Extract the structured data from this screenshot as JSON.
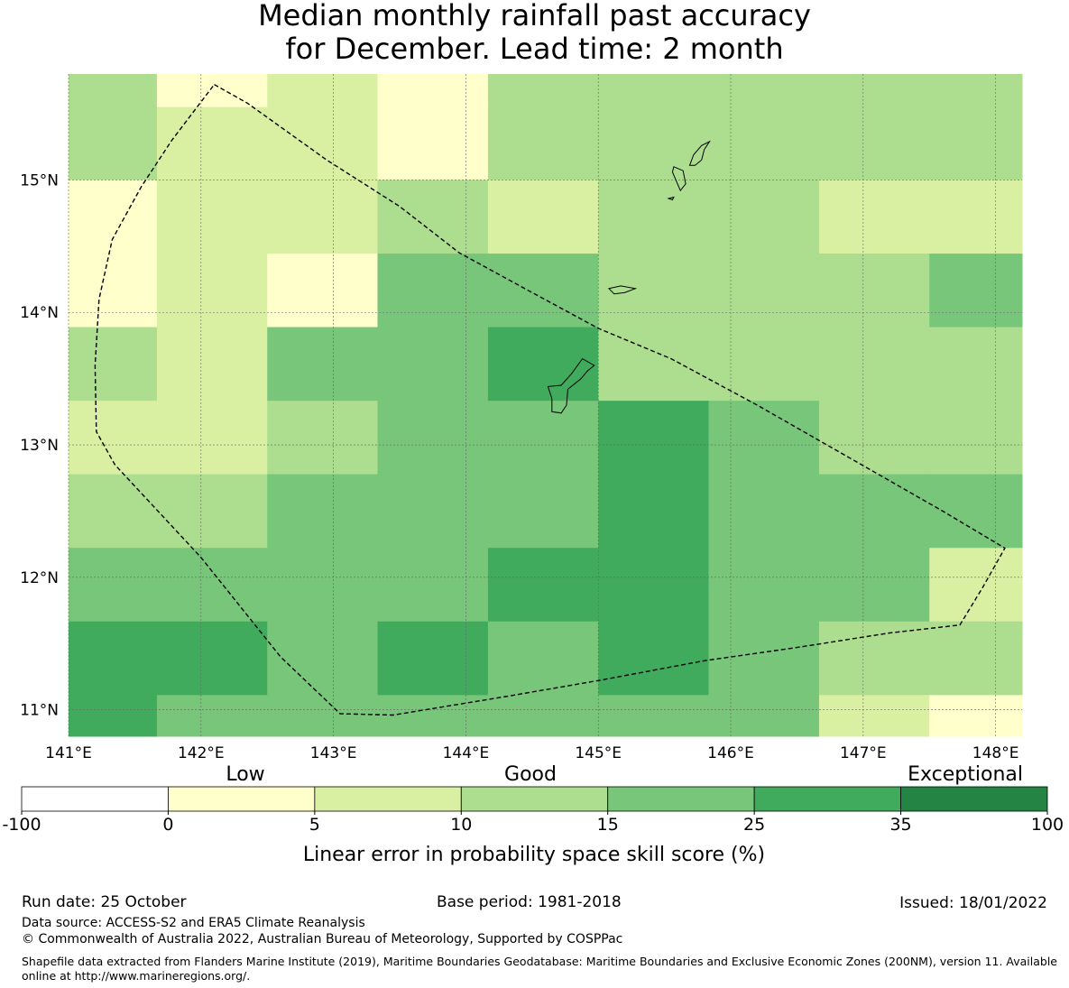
{
  "title": {
    "line1": "Median monthly rainfall past accuracy",
    "line2": "for December. Lead time: 2 month"
  },
  "map": {
    "lon_range": [
      141.0,
      148.2
    ],
    "lat_range": [
      10.8,
      15.8
    ],
    "lon_ticks": [
      {
        "value": 141,
        "label": "141°E"
      },
      {
        "value": 142,
        "label": "142°E"
      },
      {
        "value": 143,
        "label": "143°E"
      },
      {
        "value": 144,
        "label": "144°E"
      },
      {
        "value": 145,
        "label": "145°E"
      },
      {
        "value": 146,
        "label": "146°E"
      },
      {
        "value": 147,
        "label": "147°E"
      },
      {
        "value": 148,
        "label": "148°E"
      }
    ],
    "lat_ticks": [
      {
        "value": 15,
        "label": "15°N"
      },
      {
        "value": 14,
        "label": "14°N"
      },
      {
        "value": 13,
        "label": "13°N"
      },
      {
        "value": 12,
        "label": "12°N"
      },
      {
        "value": 11,
        "label": "11°N"
      }
    ],
    "grid_lon_edges": [
      141.0,
      141.667,
      142.5,
      143.333,
      144.167,
      145.0,
      145.833,
      146.667,
      147.5,
      148.2
    ],
    "grid_lat_edges": [
      15.8,
      15.55,
      15.0,
      14.444,
      13.889,
      13.333,
      12.778,
      12.222,
      11.667,
      11.111,
      10.8
    ],
    "cell_classes": [
      [
        2,
        0,
        1,
        0,
        2,
        2,
        2,
        2,
        2
      ],
      [
        2,
        1,
        1,
        0,
        2,
        2,
        2,
        2,
        2
      ],
      [
        0,
        1,
        1,
        2,
        1,
        2,
        2,
        1,
        1
      ],
      [
        0,
        1,
        0,
        3,
        3,
        2,
        2,
        2,
        3
      ],
      [
        2,
        1,
        3,
        3,
        4,
        2,
        2,
        2,
        2
      ],
      [
        1,
        1,
        2,
        3,
        3,
        4,
        3,
        2,
        2
      ],
      [
        2,
        2,
        3,
        3,
        3,
        4,
        3,
        3,
        3
      ],
      [
        3,
        3,
        3,
        3,
        4,
        4,
        3,
        3,
        1
      ],
      [
        4,
        4,
        3,
        4,
        3,
        4,
        3,
        2,
        2
      ],
      [
        4,
        3,
        3,
        3,
        3,
        3,
        3,
        1,
        0
      ]
    ],
    "eez_boundary": [
      [
        142.1,
        15.72
      ],
      [
        142.35,
        15.58
      ],
      [
        142.95,
        15.15
      ],
      [
        143.5,
        14.8
      ],
      [
        143.95,
        14.45
      ],
      [
        144.5,
        14.15
      ],
      [
        145.0,
        13.88
      ],
      [
        145.55,
        13.65
      ],
      [
        146.2,
        13.3
      ],
      [
        146.9,
        12.9
      ],
      [
        147.6,
        12.5
      ],
      [
        148.07,
        12.22
      ],
      [
        147.9,
        11.92
      ],
      [
        147.73,
        11.64
      ],
      [
        147.2,
        11.58
      ],
      [
        146.5,
        11.47
      ],
      [
        145.8,
        11.37
      ],
      [
        145.0,
        11.22
      ],
      [
        144.3,
        11.1
      ],
      [
        143.45,
        10.96
      ],
      [
        143.05,
        10.97
      ],
      [
        142.6,
        11.4
      ],
      [
        142.0,
        12.15
      ],
      [
        141.35,
        12.85
      ],
      [
        141.21,
        13.1
      ],
      [
        141.2,
        13.6
      ],
      [
        141.23,
        14.1
      ],
      [
        141.33,
        14.55
      ],
      [
        141.55,
        14.95
      ],
      [
        141.78,
        15.3
      ],
      [
        142.1,
        15.72
      ]
    ],
    "islands": [
      {
        "name": "Guam",
        "outline": [
          [
            144.97,
            13.6
          ],
          [
            144.88,
            13.65
          ],
          [
            144.8,
            13.54
          ],
          [
            144.72,
            13.45
          ],
          [
            144.62,
            13.44
          ],
          [
            144.65,
            13.35
          ],
          [
            144.65,
            13.25
          ],
          [
            144.72,
            13.24
          ],
          [
            144.76,
            13.3
          ],
          [
            144.77,
            13.42
          ],
          [
            144.87,
            13.5
          ],
          [
            144.92,
            13.56
          ]
        ]
      },
      {
        "name": "Rota",
        "outline": [
          [
            145.08,
            14.18
          ],
          [
            145.17,
            14.2
          ],
          [
            145.28,
            14.18
          ],
          [
            145.2,
            14.15
          ],
          [
            145.12,
            14.14
          ]
        ]
      },
      {
        "name": "Tinian",
        "outline": [
          [
            145.59,
            14.99
          ],
          [
            145.56,
            15.06
          ],
          [
            145.57,
            15.1
          ],
          [
            145.64,
            15.07
          ],
          [
            145.66,
            14.97
          ],
          [
            145.62,
            14.92
          ]
        ]
      },
      {
        "name": "Saipan",
        "outline": [
          [
            145.69,
            15.11
          ],
          [
            145.72,
            15.19
          ],
          [
            145.78,
            15.26
          ],
          [
            145.84,
            15.29
          ],
          [
            145.8,
            15.23
          ],
          [
            145.78,
            15.15
          ],
          [
            145.73,
            15.11
          ]
        ]
      },
      {
        "name": "Aguijan",
        "outline": [
          [
            145.53,
            14.86
          ],
          [
            145.57,
            14.87
          ],
          [
            145.56,
            14.85
          ]
        ]
      }
    ]
  },
  "colorbar": {
    "category_labels": [
      "Low",
      "Good",
      "Exceptional"
    ],
    "tick_labels": [
      "-100",
      "0",
      "5",
      "10",
      "15",
      "25",
      "35",
      "100"
    ],
    "colors": [
      "#ffffff",
      "#ffffcc",
      "#d9f0a3",
      "#addd8e",
      "#78c679",
      "#41ab5d",
      "#238443"
    ],
    "axis_label": "Linear error in probability space skill score (%)"
  },
  "footer": {
    "run_date": "Run date: 25 October",
    "base_period": "Base period: 1981-2018",
    "issued": "Issued: 18/01/2022",
    "data_source": "Data source: ACCESS-S2 and ERA5 Climate Reanalysis",
    "copyright": "© Commonwealth of Australia 2022, Australian Bureau of Meteorology, Supported by COSPPac",
    "shapefile": "Shapefile data extracted from Flanders Marine Institute (2019), Maritime Boundaries Geodatabase: Maritime Boundaries and Exclusive Economic Zones (200NM), version 11. Available online at http://www.marineregions.org/."
  }
}
